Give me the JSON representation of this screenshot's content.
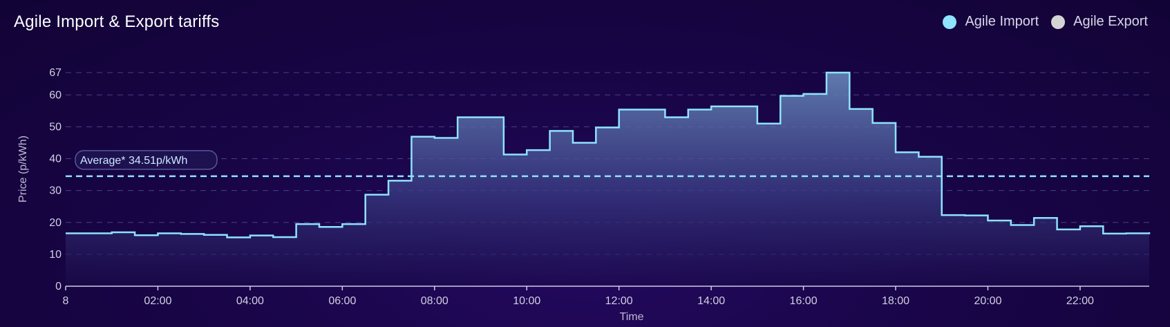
{
  "header": {
    "title": "Agile Import & Export tariffs"
  },
  "legend": {
    "items": [
      {
        "label": "Agile Import",
        "color": "#8ee3ff"
      },
      {
        "label": "Agile Export",
        "color": "#d4d4d4"
      }
    ]
  },
  "average": {
    "label": "Average* 34.51p/kWh",
    "value": 34.51
  },
  "chart_data": {
    "type": "line",
    "step": true,
    "title": "Agile Import & Export tariffs",
    "xlabel": "Time",
    "ylabel": "Price (p/kWh)",
    "xlim": [
      0,
      23.5
    ],
    "ylim": [
      0,
      67
    ],
    "y_ticks": [
      0,
      10,
      20,
      30,
      40,
      50,
      60,
      67
    ],
    "x_ticks": [
      {
        "value": 0,
        "label": "8"
      },
      {
        "value": 2,
        "label": "02:00"
      },
      {
        "value": 4,
        "label": "04:00"
      },
      {
        "value": 6,
        "label": "06:00"
      },
      {
        "value": 8,
        "label": "08:00"
      },
      {
        "value": 10,
        "label": "10:00"
      },
      {
        "value": 12,
        "label": "12:00"
      },
      {
        "value": 14,
        "label": "14:00"
      },
      {
        "value": 16,
        "label": "16:00"
      },
      {
        "value": 18,
        "label": "18:00"
      },
      {
        "value": 20,
        "label": "20:00"
      },
      {
        "value": 22,
        "label": "22:00"
      }
    ],
    "grid": true,
    "legend_position": "top-right",
    "series": [
      {
        "name": "Agile Import",
        "color": "#8ee3ff",
        "x": [
          0,
          0.5,
          1,
          1.5,
          2,
          2.5,
          3,
          3.5,
          4,
          4.5,
          5,
          5.5,
          6,
          6.5,
          7,
          7.5,
          8,
          8.5,
          9,
          9.5,
          10,
          10.5,
          11,
          11.5,
          12,
          12.5,
          13,
          13.5,
          14,
          14.5,
          15,
          15.5,
          16,
          16.5,
          17,
          17.5,
          18,
          18.5,
          19,
          19.5,
          20,
          20.5,
          21,
          21.5,
          22,
          22.5,
          23,
          23.5
        ],
        "values": [
          16.6,
          16.6,
          16.9,
          16.0,
          16.6,
          16.4,
          16.1,
          15.3,
          15.9,
          15.4,
          19.5,
          18.6,
          19.5,
          28.7,
          33.1,
          46.9,
          46.5,
          53.0,
          53.0,
          41.3,
          42.7,
          48.7,
          45.0,
          49.8,
          55.4,
          55.4,
          53.0,
          55.4,
          56.4,
          56.4,
          51.0,
          59.7,
          60.3,
          67.0,
          55.6,
          51.2,
          42.0,
          40.6,
          22.3,
          22.2,
          20.6,
          19.2,
          21.4,
          17.8,
          18.8,
          16.5,
          16.6,
          16.9
        ]
      }
    ],
    "average_line": 34.51
  }
}
